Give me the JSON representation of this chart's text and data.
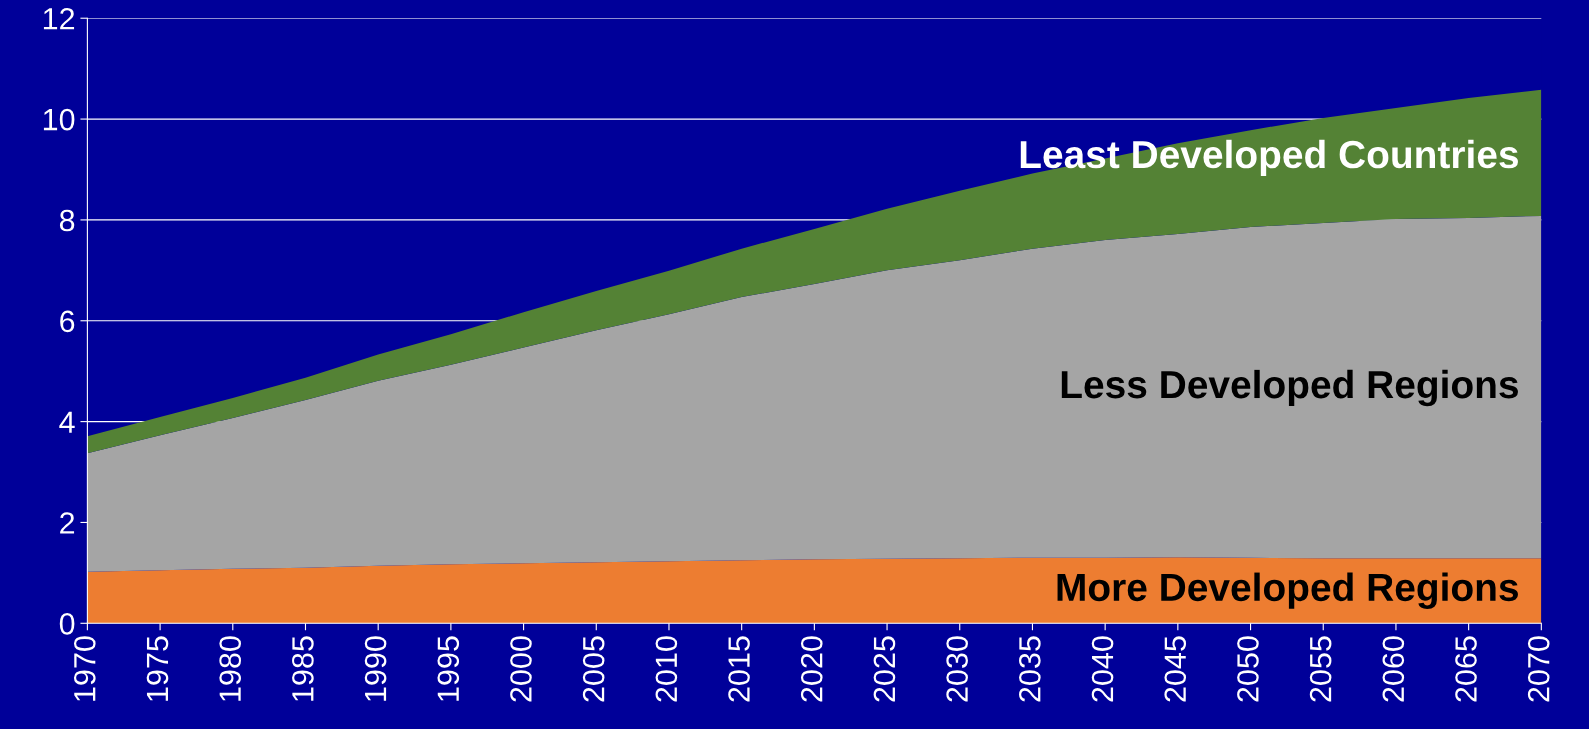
{
  "chart_data": {
    "type": "area",
    "stacked": true,
    "legend": false,
    "grid": "y",
    "categories": [
      "1970",
      "1975",
      "1980",
      "1985",
      "1990",
      "1995",
      "2000",
      "2005",
      "2010",
      "2015",
      "2020",
      "2025",
      "2030",
      "2035",
      "2040",
      "2045",
      "2050",
      "2055",
      "2060",
      "2065",
      "2070"
    ],
    "ylim": [
      0,
      12
    ],
    "yticks": [
      0,
      2,
      4,
      6,
      8,
      10,
      12
    ],
    "series": [
      {
        "name": "More Developed Regions",
        "color": "#ed7d31",
        "values": [
          1.02,
          1.05,
          1.08,
          1.1,
          1.14,
          1.17,
          1.19,
          1.21,
          1.23,
          1.25,
          1.27,
          1.28,
          1.29,
          1.3,
          1.3,
          1.31,
          1.3,
          1.29,
          1.29,
          1.29,
          1.29
        ]
      },
      {
        "name": "Less Developed Regions",
        "color": "#a5a5a5",
        "values": [
          2.35,
          2.68,
          2.99,
          3.33,
          3.67,
          3.96,
          4.28,
          4.6,
          4.9,
          5.22,
          5.46,
          5.72,
          5.91,
          6.13,
          6.3,
          6.41,
          6.56,
          6.65,
          6.73,
          6.75,
          6.79
        ]
      },
      {
        "name": "Least Developed Countries",
        "color": "#548235",
        "values": [
          0.34,
          0.36,
          0.4,
          0.44,
          0.52,
          0.6,
          0.7,
          0.78,
          0.86,
          0.96,
          1.09,
          1.22,
          1.38,
          1.49,
          1.62,
          1.8,
          1.92,
          2.08,
          2.2,
          2.38,
          2.5
        ]
      }
    ]
  }
}
